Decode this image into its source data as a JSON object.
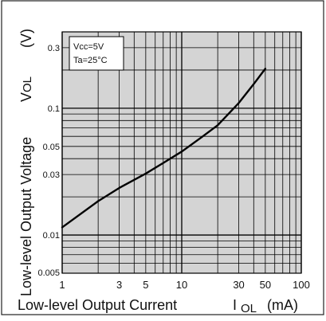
{
  "chart_data": {
    "type": "line",
    "xlabel": {
      "main": "Low-level Output Current",
      "symbol": "I",
      "subscript": "OL",
      "unit": "(mA)"
    },
    "ylabel": {
      "main": "Low-level Output Voltage",
      "symbol": "V",
      "subscript": "OL",
      "unit": "(V)"
    },
    "x_scale": "log",
    "y_scale": "log",
    "xlim": [
      1,
      100
    ],
    "ylim": [
      0.005,
      0.4
    ],
    "x_ticks": [
      {
        "value": 1,
        "label": "1"
      },
      {
        "value": 3,
        "label": "3"
      },
      {
        "value": 5,
        "label": "5"
      },
      {
        "value": 10,
        "label": "10"
      },
      {
        "value": 30,
        "label": "30"
      },
      {
        "value": 50,
        "label": "50"
      },
      {
        "value": 100,
        "label": "100"
      }
    ],
    "y_ticks": [
      {
        "value": 0.005,
        "label": "0.005"
      },
      {
        "value": 0.01,
        "label": "0.01"
      },
      {
        "value": 0.03,
        "label": "0.03"
      },
      {
        "value": 0.05,
        "label": "0.05"
      },
      {
        "value": 0.1,
        "label": "0.1"
      },
      {
        "value": 0.3,
        "label": "0.3"
      }
    ],
    "grid": true,
    "annotation": {
      "line1": "Vcc=5V",
      "line2": "Ta=25°C"
    },
    "series": [
      {
        "x": [
          1,
          2,
          3,
          5,
          7,
          10,
          15,
          20,
          30,
          40,
          50
        ],
        "y": [
          0.0115,
          0.0185,
          0.0235,
          0.0305,
          0.037,
          0.0455,
          0.06,
          0.0735,
          0.11,
          0.155,
          0.205
        ]
      }
    ],
    "colors": {
      "plot_background": "#d4d4d4",
      "grid": "#000000",
      "curve": "#000000"
    }
  }
}
